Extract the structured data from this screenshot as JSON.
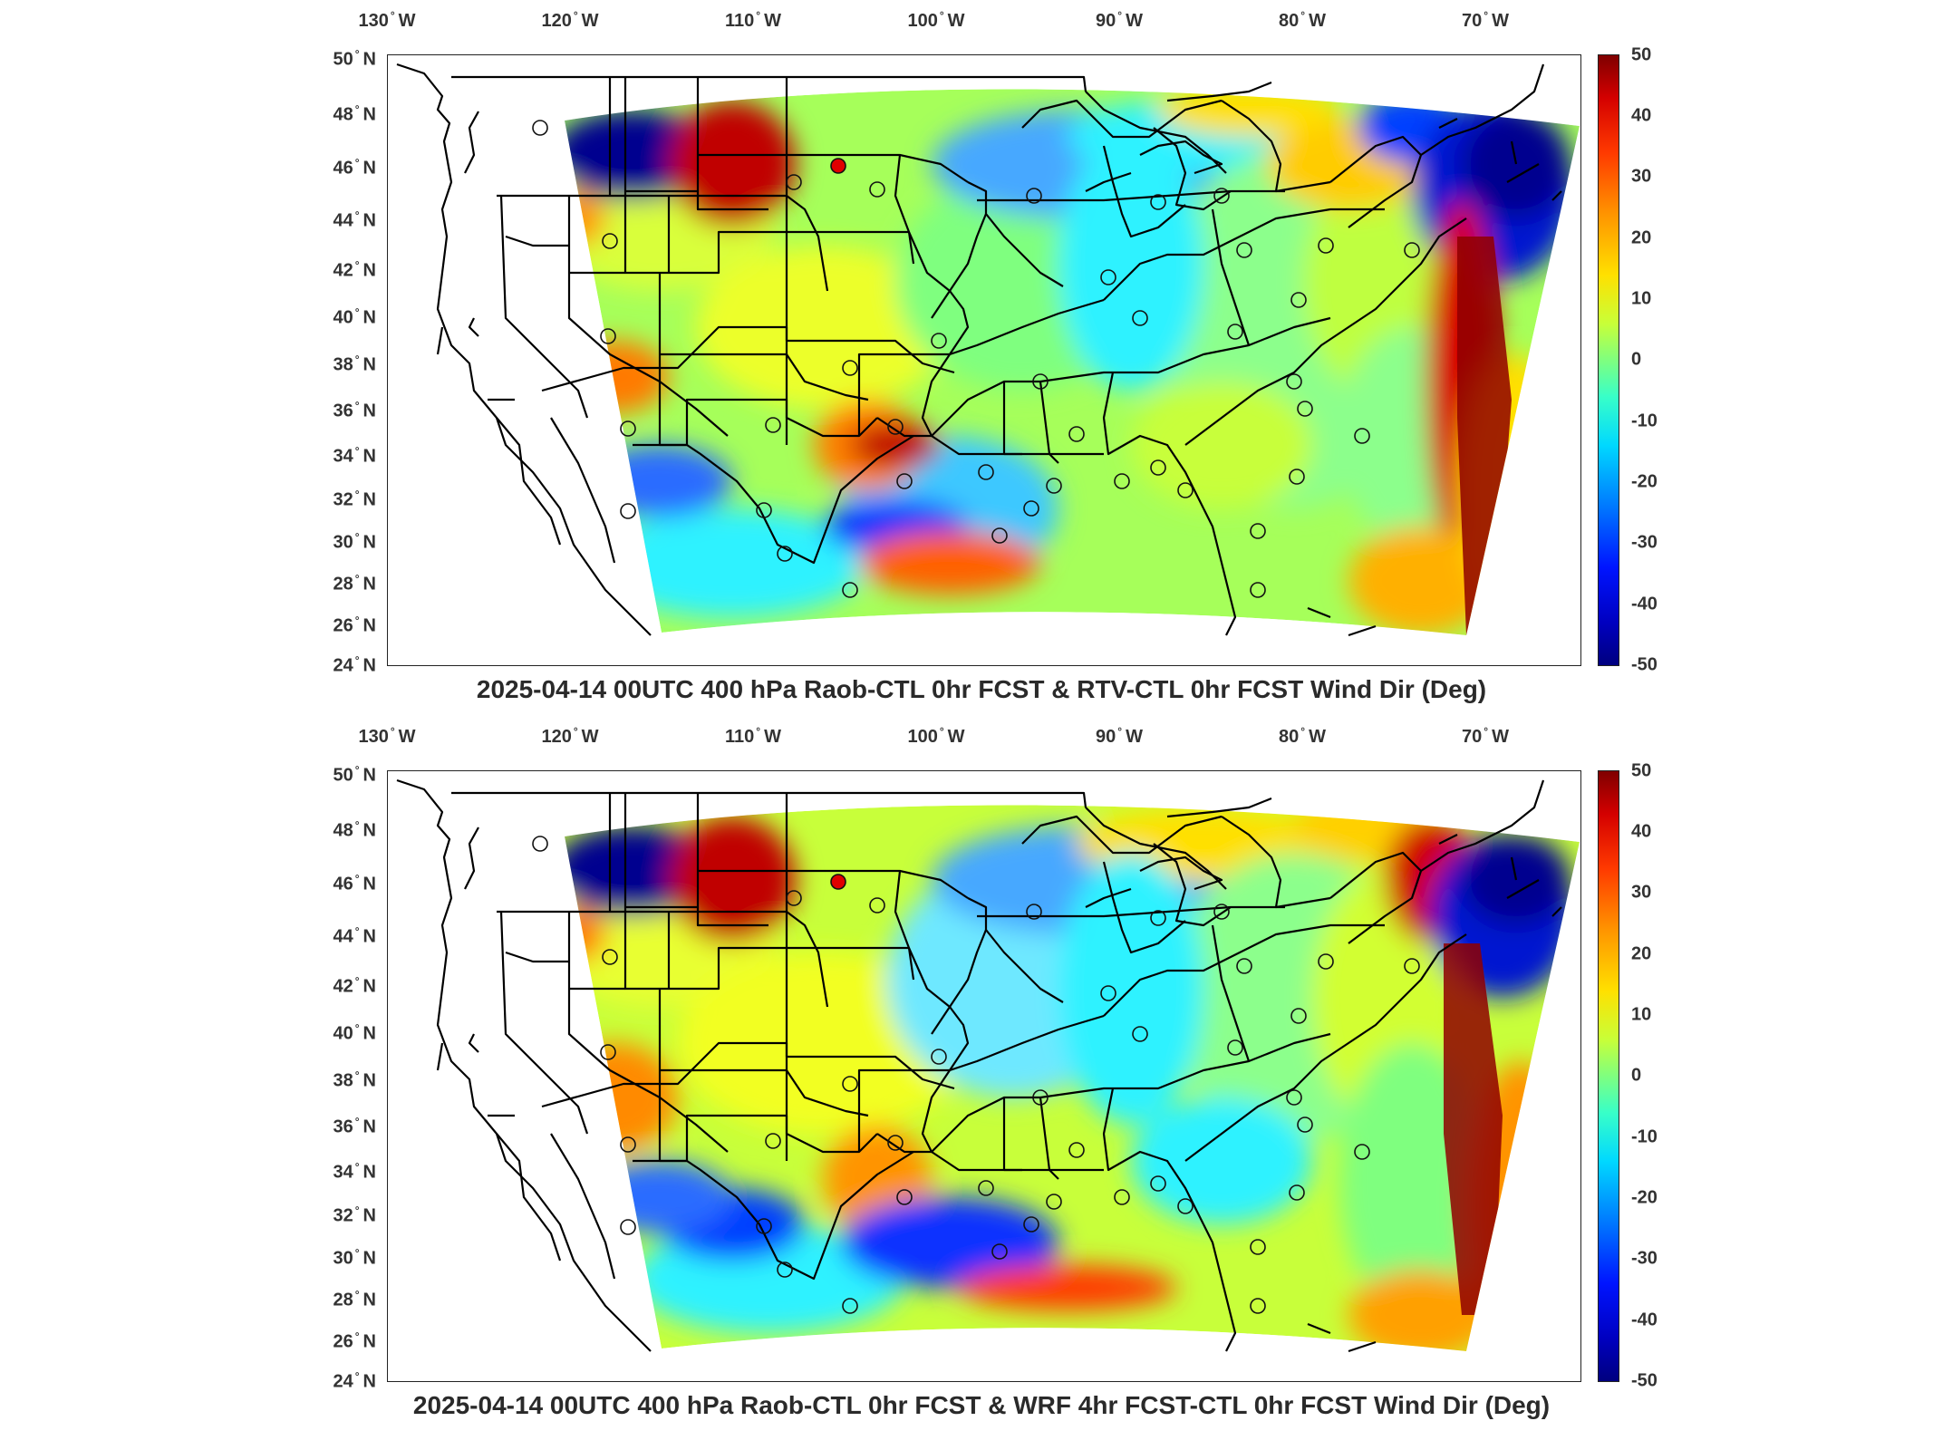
{
  "lon_labels": [
    "130",
    "120",
    "110",
    "100",
    "90",
    "80",
    "70"
  ],
  "lon_suffix": "W",
  "lat_labels": [
    "50",
    "48",
    "46",
    "44",
    "42",
    "40",
    "38",
    "36",
    "34",
    "32",
    "30",
    "28",
    "26",
    "24"
  ],
  "lat_suffix": "N",
  "colorbar_ticks": [
    "50",
    "40",
    "30",
    "20",
    "10",
    "0",
    "-10",
    "-20",
    "-30",
    "-40",
    "-50"
  ],
  "colors": {
    "dark_red": "#7f0000",
    "red": "#e00000",
    "orange": "#ff8a00",
    "yellow": "#ffe600",
    "yellow_green": "#c8ff3a",
    "green": "#8cff8c",
    "cyan": "#2ef2ff",
    "light_blue": "#46a8ff",
    "blue": "#0040ff",
    "navy": "#00008f",
    "boundary": "#000000"
  },
  "panels": [
    {
      "title": "2025-04-14 00UTC 400 hPa Raob-CTL 0hr FCST & RTV-CTL 0hr FCST Wind Dir (Deg)"
    },
    {
      "title": "2025-04-14 00UTC 400 hPa Raob-CTL 0hr FCST & WRF 4hr FCST-CTL 0hr FCST Wind Dir (Deg)"
    }
  ]
}
